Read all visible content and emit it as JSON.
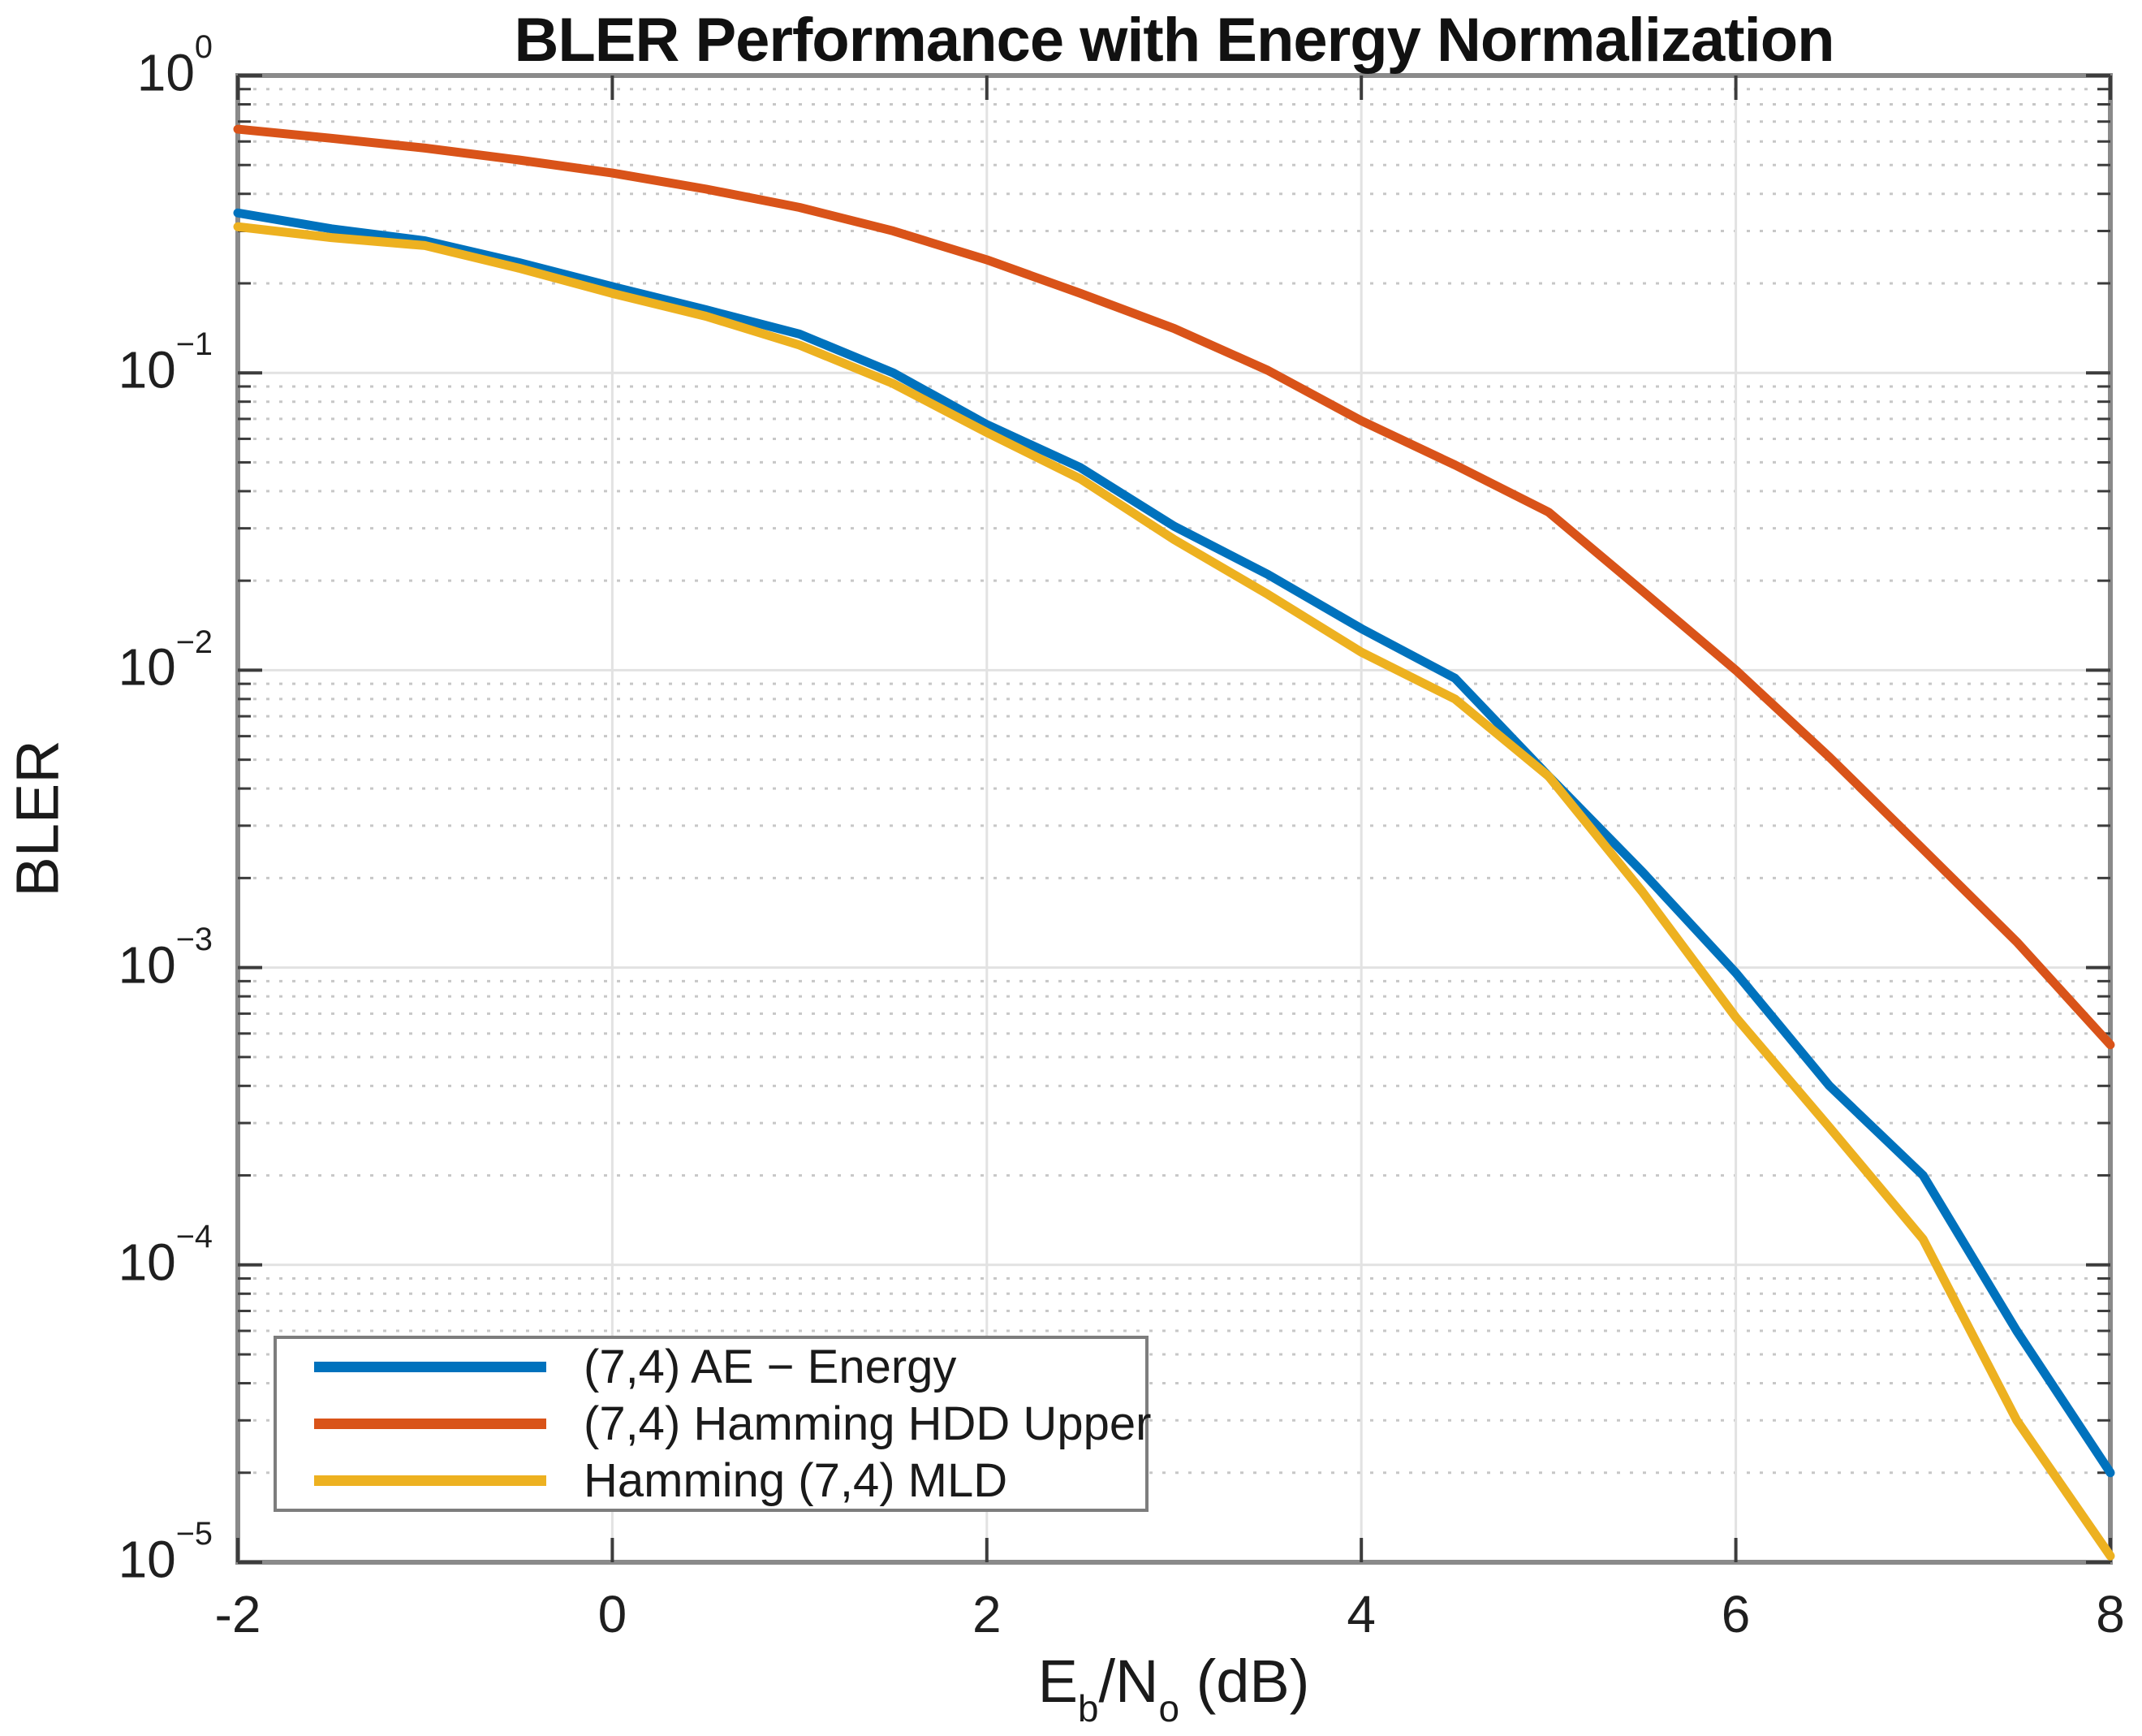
{
  "figure": {
    "title": "BLER Performance with Energy Normalization",
    "ylabel": "BLER",
    "xlabel": {
      "pre": "E",
      "sub1": "b",
      "mid": "/N",
      "sub2": "o",
      "post": " (dB)"
    },
    "colors": {
      "background": "#ffffff",
      "axis_border": "#8a8a8a",
      "tick_mark": "#3c3c3c",
      "text": "#1a1a1a",
      "grid_major": "#e2e2e2",
      "grid_minor": "#c7c7c7"
    }
  },
  "chart_data": {
    "type": "line",
    "title": "BLER Performance with Energy Normalization",
    "xlabel": "Eb/No (dB)",
    "ylabel": "BLER",
    "xlim": [
      -2,
      8
    ],
    "ylim": [
      1e-05,
      1
    ],
    "yscale": "log",
    "x_ticks": [
      -2,
      0,
      2,
      4,
      6,
      8
    ],
    "y_tick_exponents": [
      0,
      -1,
      -2,
      -3,
      -4,
      -5
    ],
    "grid": true,
    "minor_grid": true,
    "legend_position": "southwest",
    "x": [
      -2,
      -1.5,
      -1,
      -0.5,
      0,
      0.5,
      1,
      1.5,
      2,
      2.5,
      3,
      3.5,
      4,
      4.5,
      5,
      5.5,
      6,
      6.5,
      7,
      7.5,
      8
    ],
    "series": [
      {
        "name": "(7,4) AE − Energy",
        "color": "#0072BD",
        "values": [
          0.345,
          0.305,
          0.278,
          0.235,
          0.195,
          0.163,
          0.135,
          0.1,
          0.067,
          0.048,
          0.0305,
          0.021,
          0.0138,
          0.0094,
          0.0044,
          0.0021,
          0.00096,
          0.0004,
          0.0002,
          6e-05,
          2e-05
        ]
      },
      {
        "name": "(7,4) Hamming HDD Upper",
        "color": "#D95319",
        "values": [
          0.66,
          0.615,
          0.57,
          0.52,
          0.47,
          0.415,
          0.36,
          0.3,
          0.24,
          0.185,
          0.141,
          0.102,
          0.069,
          0.049,
          0.034,
          0.0185,
          0.01,
          0.0051,
          0.0025,
          0.00122,
          0.00055
        ]
      },
      {
        "name": "Hamming (7,4) MLD",
        "color": "#EDB120",
        "values": [
          0.31,
          0.285,
          0.268,
          0.225,
          0.185,
          0.155,
          0.124,
          0.092,
          0.063,
          0.044,
          0.0275,
          0.018,
          0.0115,
          0.008,
          0.0044,
          0.0018,
          0.00068,
          0.00029,
          0.000122,
          3e-05,
          1.05e-05
        ]
      }
    ]
  }
}
